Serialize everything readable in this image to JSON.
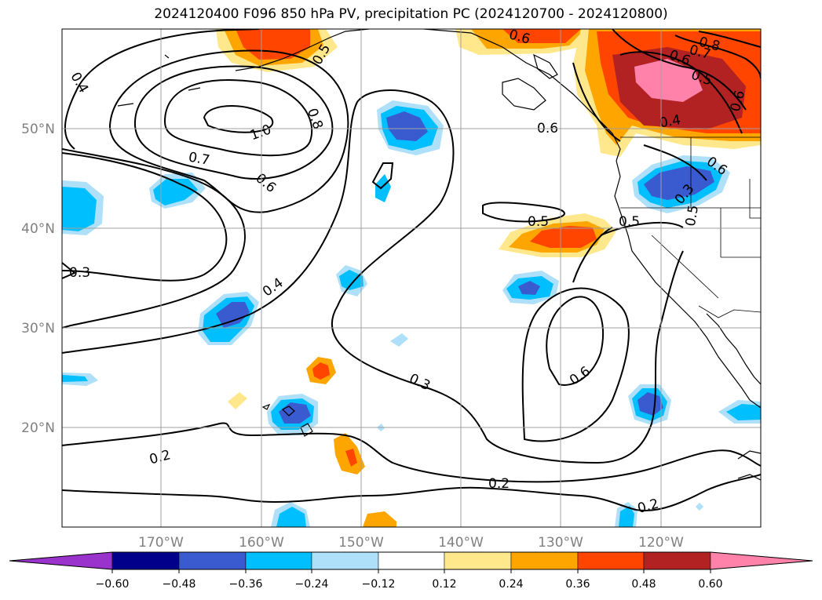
{
  "title": "2024120400 F096 850 hPa PV, precipitation PC (2024120700 - 2024120800)",
  "map": {
    "lat_ticks": [
      "50°N",
      "40°N",
      "30°N",
      "20°N"
    ],
    "lon_ticks": [
      "170°W",
      "160°W",
      "150°W",
      "140°W",
      "130°W",
      "120°W"
    ],
    "tick_color": "#808080"
  },
  "contour_labels": [
    "0.4",
    "1.0",
    "0.8",
    "0.7",
    "0.6",
    "0.3",
    "0.4",
    "0.3",
    "0.2",
    "0.2",
    "0.2",
    "0.5",
    "0.6",
    "0.5",
    "0.6",
    "0.5",
    "0.6",
    "0.7",
    "0.8",
    "0.6",
    "0.4",
    "0.3",
    "0.6",
    "0.6",
    "0.5",
    "0.5"
  ],
  "colorbar": {
    "tick_labels": [
      "−0.60",
      "−0.48",
      "−0.36",
      "−0.24",
      "−0.12",
      "0.12",
      "0.24",
      "0.36",
      "0.48",
      "0.60"
    ],
    "colors": [
      "#9a33cc",
      "#00008b",
      "#3a5bd0",
      "#00bfff",
      "#aee0fa",
      "#ffffff",
      "#ffe88c",
      "#ffa500",
      "#ff4500",
      "#b22222",
      "#ff82ab"
    ]
  }
}
